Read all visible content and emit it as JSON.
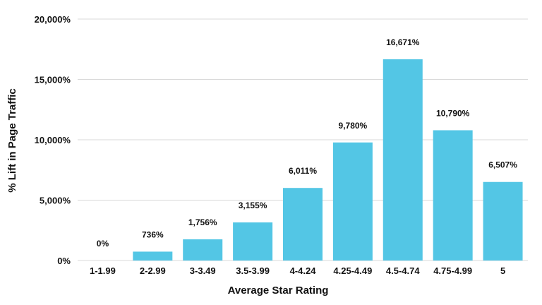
{
  "chart_data": {
    "type": "bar",
    "title": "",
    "xlabel": "Average Star Rating",
    "ylabel": "% Lift in Page Traffic",
    "categories": [
      "1-1.99",
      "2-2.99",
      "3-3.49",
      "3.5-3.99",
      "4-4.24",
      "4.25-4.49",
      "4.5-4.74",
      "4.75-4.99",
      "5"
    ],
    "values": [
      0,
      736,
      1756,
      3155,
      6011,
      9780,
      16671,
      10790,
      6507
    ],
    "data_labels": [
      "0%",
      "736%",
      "1,756%",
      "3,155%",
      "6,011%",
      "9,780%",
      "16,671%",
      "10,790%",
      "6,507%"
    ],
    "ylim": [
      0,
      20000
    ],
    "y_ticks": [
      0,
      5000,
      10000,
      15000,
      20000
    ],
    "y_tick_labels": [
      "0%",
      "5,000%",
      "10,000%",
      "15,000%",
      "20,000%"
    ],
    "grid": true,
    "legend": "none",
    "bar_color": "#53c6e5",
    "grid_color": "#d9d9d9"
  }
}
